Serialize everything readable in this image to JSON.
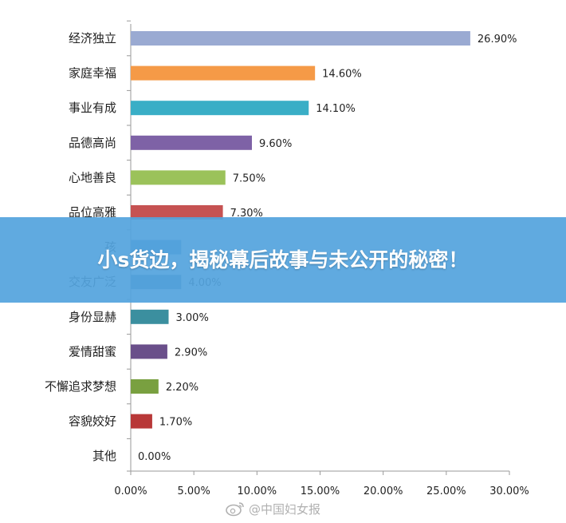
{
  "chart_data": {
    "type": "bar",
    "orientation": "horizontal",
    "categories": [
      "经济独立",
      "家庭幸福",
      "事业有成",
      "品德高尚",
      "心地善良",
      "品位高雅",
      "孩",
      "交友广泛",
      "身份显赫",
      "爱情甜蜜",
      "不懈追求梦想",
      "容貌姣好",
      "其他"
    ],
    "values": [
      26.9,
      14.6,
      14.1,
      9.6,
      7.5,
      7.3,
      4.0,
      4.0,
      3.0,
      2.9,
      2.2,
      1.7,
      0.0
    ],
    "value_labels": [
      "26.90%",
      "14.60%",
      "14.10%",
      "9.60%",
      "7.50%",
      "7.30%",
      "",
      "4.00%",
      "3.00%",
      "2.90%",
      "2.20%",
      "1.70%",
      "0.00%"
    ],
    "colors": [
      "#9aaad2",
      "#f59a47",
      "#3aaec6",
      "#7e62a6",
      "#9bc25a",
      "#c65252",
      "#4a89c2",
      "#4b86a8",
      "#3b8f9f",
      "#6a4f8a",
      "#79a040",
      "#b83838",
      "#888888"
    ],
    "xticks": [
      "0.00%",
      "5.00%",
      "10.00%",
      "15.00%",
      "20.00%",
      "25.00%",
      "30.00%"
    ],
    "xlim": [
      0,
      30
    ],
    "title": "",
    "xlabel": "",
    "ylabel": ""
  },
  "banner": {
    "text": "小s货边，揭秘幕后故事与未公开的秘密！"
  },
  "watermark": {
    "icon": "weibo-icon",
    "text": "@中国妇女报"
  }
}
